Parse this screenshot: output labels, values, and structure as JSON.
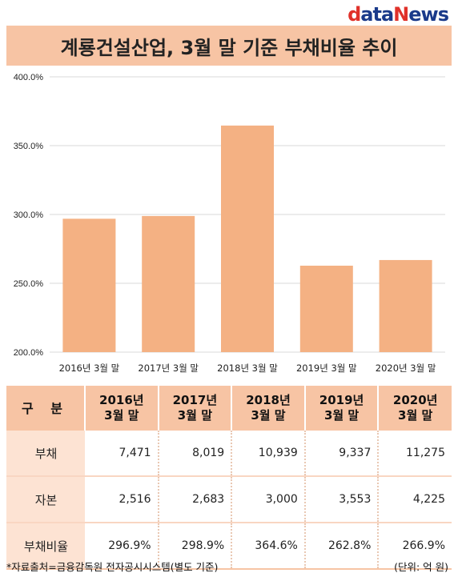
{
  "logo": {
    "d": "d",
    "ata": "ata",
    "n": "N",
    "ews": "ews"
  },
  "title": "계룡건설산업, 3월 말 기준 부채비율 추이",
  "chart_data": {
    "type": "bar",
    "categories": [
      "2016년 3월 말",
      "2017년 3월 말",
      "2018년 3월 말",
      "2019년 3월 말",
      "2020년 3월 말"
    ],
    "values": [
      296.9,
      298.9,
      364.6,
      262.8,
      266.9
    ],
    "ylim": [
      200,
      400
    ],
    "yticks": [
      200,
      250,
      300,
      350,
      400
    ],
    "ytick_labels": [
      "200.0%",
      "250.0%",
      "300.0%",
      "350.0%",
      "400.0%"
    ],
    "grid": true,
    "bar_color": "#f4b183"
  },
  "table": {
    "headers": [
      "구 분",
      "2016년\n3월 말",
      "2017년\n3월 말",
      "2018년\n3월 말",
      "2019년\n3월 말",
      "2020년\n3월 말"
    ],
    "rows": [
      {
        "label": "부채",
        "values": [
          "7,471",
          "8,019",
          "10,939",
          "9,337",
          "11,275"
        ]
      },
      {
        "label": "자본",
        "values": [
          "2,516",
          "2,683",
          "3,000",
          "3,553",
          "4,225"
        ]
      },
      {
        "label": "부채비율",
        "values": [
          "296.9%",
          "298.9%",
          "364.6%",
          "262.8%",
          "266.9%"
        ]
      }
    ]
  },
  "footnote": "*자료출처=금융감독원 전자공시시스템(별도 기준)",
  "unit": "(단위: 억 원)",
  "colors": {
    "header_bg": "#f7c4a4",
    "label_bg": "#fde3d3",
    "bar": "#f4b183"
  }
}
